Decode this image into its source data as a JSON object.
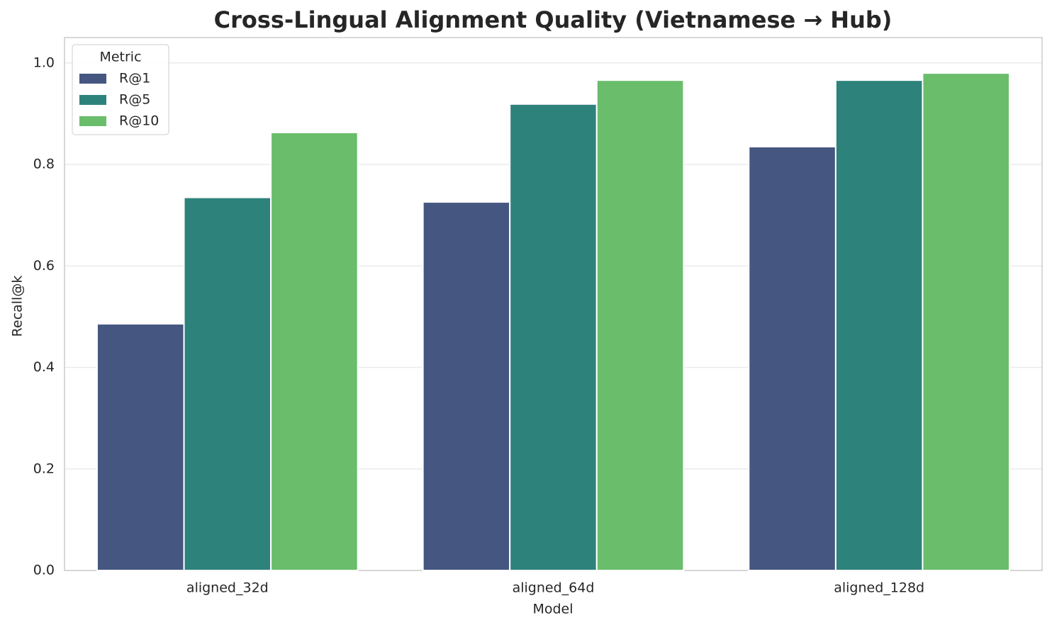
{
  "chart_data": {
    "type": "bar",
    "title": "Cross-Lingual Alignment Quality (Vietnamese → Hub)",
    "x_label": "Model",
    "y_label": "Recall@k",
    "categories": [
      "aligned_32d",
      "aligned_64d",
      "aligned_128d"
    ],
    "series": [
      {
        "name": "R@1",
        "color": "#455681",
        "values": [
          0.486,
          0.726,
          0.835
        ]
      },
      {
        "name": "R@5",
        "color": "#2e827c",
        "values": [
          0.735,
          0.919,
          0.966
        ]
      },
      {
        "name": "R@10",
        "color": "#6abd6b",
        "values": [
          0.863,
          0.966,
          0.98
        ]
      }
    ],
    "legend_title": "Metric",
    "legend_position": "upper-left",
    "ylim": [
      0,
      1.05
    ],
    "yticks": [
      {
        "value": 0,
        "label": "0.0"
      },
      0.2,
      0.4,
      0.6,
      0.8,
      {
        "value": 1,
        "label": "1.0"
      }
    ],
    "grid": true
  }
}
